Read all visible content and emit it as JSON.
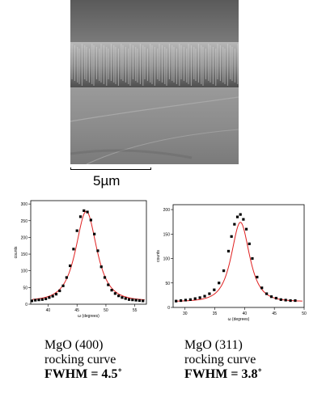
{
  "scale_bar": {
    "label": "5µm"
  },
  "captions": [
    {
      "line1": "MgO (400)",
      "line2": "rocking curve",
      "line3": "FWHM = 4.5˚"
    },
    {
      "line1": "MgO (311)",
      "line2": "rocking curve",
      "line3": "FWHM = 3.8˚"
    }
  ],
  "chart_data": [
    {
      "type": "scatter",
      "ylabel": "counts",
      "xlabel": "ω (degrees)",
      "xlim": [
        37,
        57
      ],
      "ylim": [
        0,
        310
      ],
      "xticks": [
        40,
        45,
        50,
        55
      ],
      "yticks": [
        0,
        50,
        100,
        150,
        200,
        250,
        300
      ],
      "colors": {
        "points": "#000000",
        "fit": "#e02020"
      },
      "fit": {
        "center": 46.6,
        "fwhm": 4.5,
        "amplitude": 268,
        "baseline": 10
      },
      "series": [
        {
          "x": [
            37.2,
            37.8,
            38.4,
            39,
            39.6,
            40.2,
            40.8,
            41.4,
            42,
            42.6,
            43.2,
            43.8,
            44.4,
            45,
            45.6,
            46.2,
            46.8,
            47.4,
            48,
            48.6,
            49.2,
            49.8,
            50.4,
            51,
            51.6,
            52.2,
            52.8,
            53.4,
            54,
            54.6,
            55.2,
            55.8,
            56.4
          ],
          "y": [
            10,
            12,
            13,
            14,
            16,
            20,
            24,
            30,
            40,
            55,
            80,
            115,
            165,
            220,
            262,
            280,
            276,
            252,
            210,
            160,
            112,
            80,
            58,
            42,
            32,
            25,
            20,
            17,
            14,
            13,
            12,
            11,
            10
          ]
        }
      ]
    },
    {
      "type": "scatter",
      "ylabel": "counts",
      "xlabel": "ω (degrees)",
      "xlim": [
        28,
        50
      ],
      "ylim": [
        0,
        210
      ],
      "xticks": [
        30,
        35,
        40,
        45,
        50
      ],
      "yticks": [
        0,
        50,
        100,
        150,
        200
      ],
      "colors": {
        "points": "#000000",
        "fit": "#e02020"
      },
      "fit": {
        "center": 39.3,
        "fwhm": 3.8,
        "amplitude": 162,
        "baseline": 12
      },
      "series": [
        {
          "x": [
            28.5,
            29.3,
            30.1,
            30.9,
            31.7,
            32.5,
            33.3,
            34.1,
            34.9,
            35.7,
            36.5,
            37.3,
            37.8,
            38.3,
            38.8,
            39.3,
            39.8,
            40.3,
            40.8,
            41.3,
            42.1,
            42.9,
            43.7,
            44.5,
            45.3,
            46.1,
            46.9,
            47.7,
            48.5
          ],
          "y": [
            13,
            14,
            15,
            16,
            18,
            20,
            23,
            28,
            36,
            50,
            75,
            115,
            145,
            170,
            185,
            190,
            180,
            160,
            130,
            100,
            62,
            40,
            28,
            22,
            19,
            16,
            15,
            14,
            14
          ]
        }
      ]
    }
  ]
}
